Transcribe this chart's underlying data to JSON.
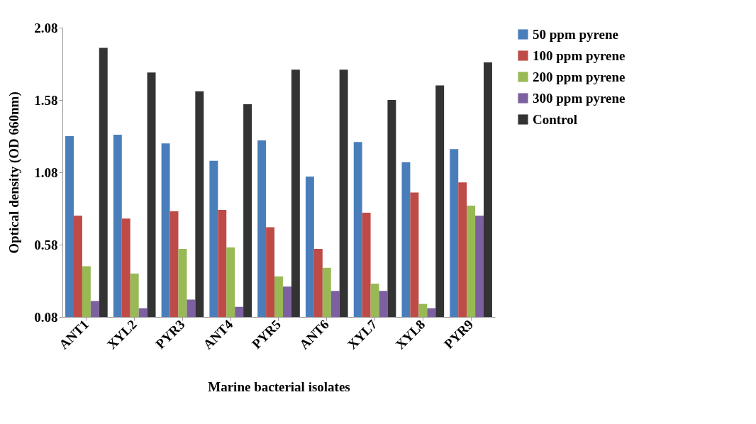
{
  "chart_data": {
    "type": "bar",
    "xlabel": "Marine bacterial isolates",
    "ylabel": "Optical density (OD 660nm)",
    "categories": [
      "ANT1",
      "XYL2",
      "PYR3",
      "ANT4",
      "PYR5",
      "ANT6",
      "XYL7",
      "XYL8",
      "PYR9"
    ],
    "series": [
      {
        "name": "50 ppm pyrene",
        "color": "#4a7ebb",
        "values": [
          1.33,
          1.34,
          1.28,
          1.16,
          1.3,
          1.05,
          1.29,
          1.15,
          1.24
        ]
      },
      {
        "name": "100 ppm pyrene",
        "color": "#be4b48",
        "values": [
          0.78,
          0.76,
          0.81,
          0.82,
          0.7,
          0.55,
          0.8,
          0.94,
          1.01
        ]
      },
      {
        "name": "200 ppm pyrene",
        "color": "#98b954",
        "values": [
          0.43,
          0.38,
          0.55,
          0.56,
          0.36,
          0.42,
          0.31,
          0.17,
          0.85
        ]
      },
      {
        "name": "300 ppm pyrene",
        "color": "#7d60a0",
        "values": [
          0.19,
          0.14,
          0.2,
          0.15,
          0.29,
          0.26,
          0.26,
          0.14,
          0.78
        ]
      },
      {
        "name": "Control",
        "color": "#333333",
        "values": [
          1.94,
          1.77,
          1.64,
          1.55,
          1.79,
          1.79,
          1.58,
          1.68,
          1.84
        ]
      }
    ],
    "ylim": [
      0.08,
      2.08
    ],
    "yticks": [
      0.08,
      0.58,
      1.08,
      1.58,
      2.08
    ],
    "grid": false,
    "legend": "top right"
  }
}
